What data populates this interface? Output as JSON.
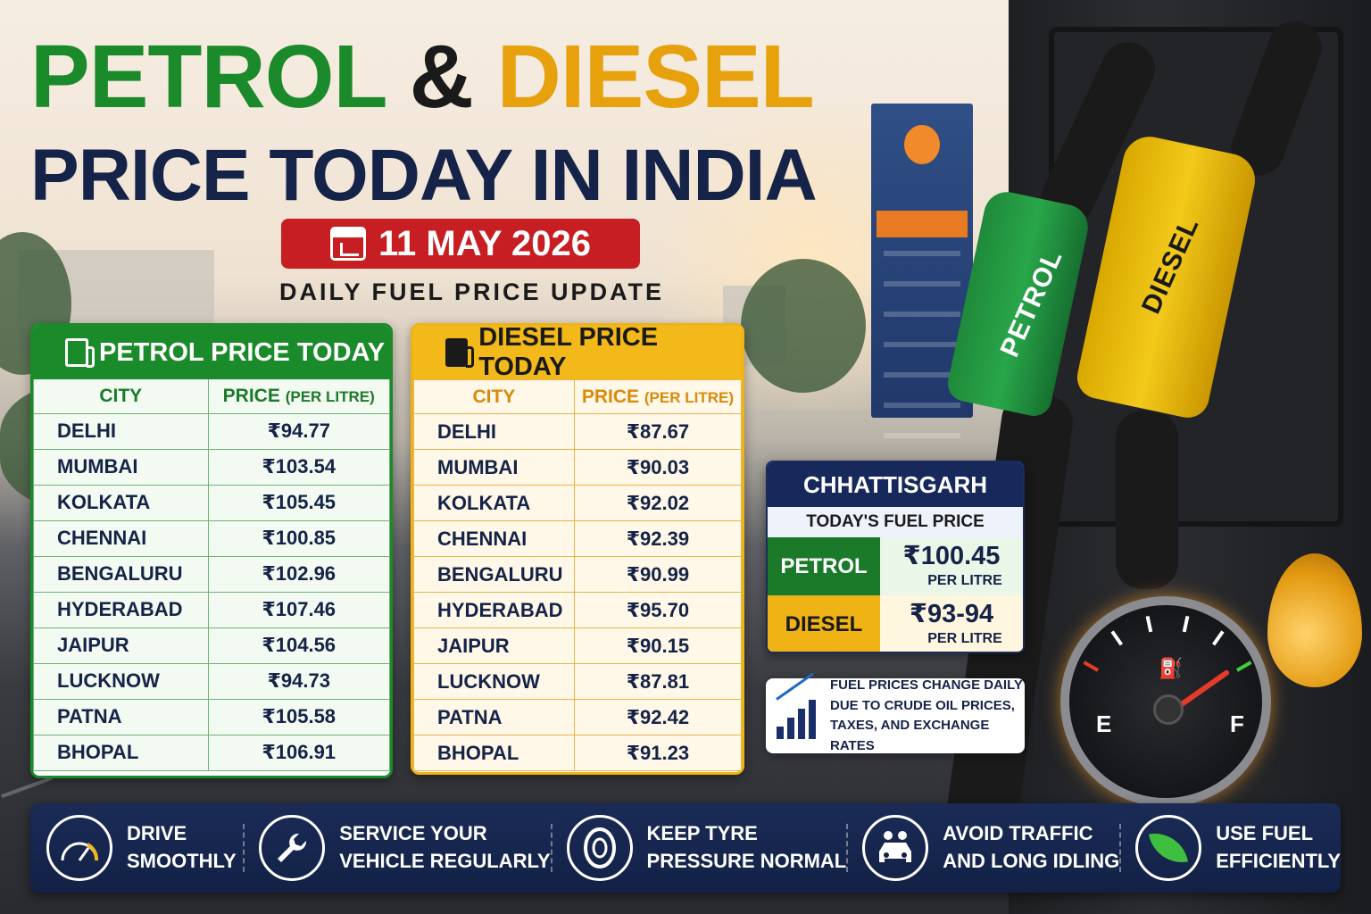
{
  "headline": {
    "word1": "PETROL",
    "amp": "&",
    "word2": "DIESEL",
    "line2": "PRICE TODAY IN INDIA"
  },
  "date": "11 MAY 2026",
  "subtitle": "DAILY FUEL PRICE UPDATE",
  "petrol_table": {
    "title": "PETROL PRICE TODAY",
    "col_city": "CITY",
    "col_price": "PRICE",
    "col_price_unit": "(PER LITRE)",
    "rows": [
      {
        "city": "DELHI",
        "price": "₹94.77"
      },
      {
        "city": "MUMBAI",
        "price": "₹103.54"
      },
      {
        "city": "KOLKATA",
        "price": "₹105.45"
      },
      {
        "city": "CHENNAI",
        "price": "₹100.85"
      },
      {
        "city": "BENGALURU",
        "price": "₹102.96"
      },
      {
        "city": "HYDERABAD",
        "price": "₹107.46"
      },
      {
        "city": "JAIPUR",
        "price": "₹104.56"
      },
      {
        "city": "LUCKNOW",
        "price": "₹94.73"
      },
      {
        "city": "PATNA",
        "price": "₹105.58"
      },
      {
        "city": "BHOPAL",
        "price": "₹106.91"
      }
    ]
  },
  "diesel_table": {
    "title": "DIESEL PRICE TODAY",
    "col_city": "CITY",
    "col_price": "PRICE",
    "col_price_unit": "(PER LITRE)",
    "rows": [
      {
        "city": "DELHI",
        "price": "₹87.67"
      },
      {
        "city": "MUMBAI",
        "price": "₹90.03"
      },
      {
        "city": "KOLKATA",
        "price": "₹92.02"
      },
      {
        "city": "CHENNAI",
        "price": "₹92.39"
      },
      {
        "city": "BENGALURU",
        "price": "₹90.99"
      },
      {
        "city": "HYDERABAD",
        "price": "₹95.70"
      },
      {
        "city": "JAIPUR",
        "price": "₹90.15"
      },
      {
        "city": "LUCKNOW",
        "price": "₹87.81"
      },
      {
        "city": "PATNA",
        "price": "₹92.42"
      },
      {
        "city": "BHOPAL",
        "price": "₹91.23"
      }
    ]
  },
  "chhattisgarh": {
    "title": "CHHATTISGARH",
    "subtitle": "TODAY'S FUEL PRICE",
    "petrol_label": "PETROL",
    "petrol_price": "₹100.45",
    "petrol_unit": "PER LITRE",
    "diesel_label": "DIESEL",
    "diesel_price": "₹93-94",
    "diesel_unit": "PER LITRE"
  },
  "note": {
    "line1": "FUEL PRICES CHANGE DAILY",
    "line2": "DUE TO CRUDE OIL PRICES,",
    "line3": "TAXES, AND EXCHANGE RATES"
  },
  "nozzles": {
    "petrol": "PETROL",
    "diesel": "DIESEL"
  },
  "gauge": {
    "empty": "E",
    "full": "F"
  },
  "tips": [
    {
      "line1": "DRIVE",
      "line2": "SMOOTHLY",
      "icon": "speedometer-icon"
    },
    {
      "line1": "SERVICE YOUR",
      "line2": "VEHICLE REGULARLY",
      "icon": "wrench-icon"
    },
    {
      "line1": "KEEP TYRE",
      "line2": "PRESSURE NORMAL",
      "icon": "tyre-icon"
    },
    {
      "line1": "AVOID TRAFFIC",
      "line2": "AND LONG IDLING",
      "icon": "traffic-icon"
    },
    {
      "line1": "USE FUEL",
      "line2": "EFFICIENTLY",
      "icon": "leaf-icon"
    }
  ],
  "colors": {
    "petrol_green": "#1b8a2a",
    "diesel_yellow": "#f3b81a",
    "navy": "#152348",
    "date_red": "#c61e22"
  }
}
